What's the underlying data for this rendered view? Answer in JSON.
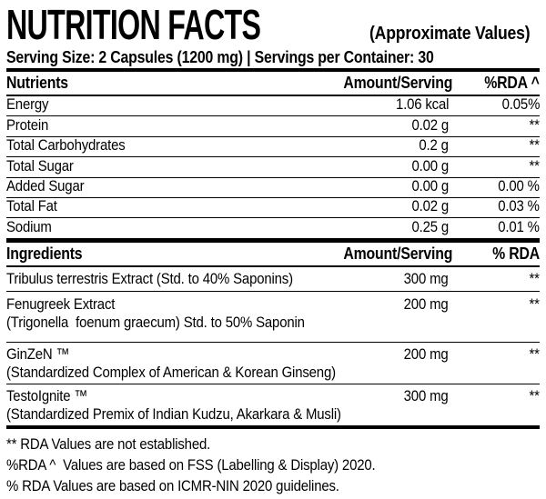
{
  "colors": {
    "text": "#000000",
    "background": "#ffffff"
  },
  "header": {
    "title": "NUTRITION FACTS",
    "title_note": "(Approximate Values)",
    "serving_line": "Serving Size: 2 Capsules (1200 mg) | Servings per Container: 30"
  },
  "nutrients_table": {
    "col_nutrients": "Nutrients",
    "col_amount": "Amount/Serving",
    "col_rda": "%RDA ^",
    "rows": [
      {
        "label": "Energy",
        "amount": "1.06 kcal",
        "rda": "0.05%"
      },
      {
        "label": "Protein",
        "amount": "0.02 g",
        "rda": "**"
      },
      {
        "label": "Total Carbohydrates",
        "amount": "0.2 g",
        "rda": "**"
      },
      {
        "label": "Total Sugar",
        "amount": "0.00 g",
        "rda": "**"
      },
      {
        "label": "Added Sugar",
        "amount": "0.00 g",
        "rda": "0.00 %"
      },
      {
        "label": "Total Fat",
        "amount": "0.02 g",
        "rda": "0.03 %"
      },
      {
        "label": "Sodium",
        "amount": "0.25 g",
        "rda": "0.01 %"
      }
    ]
  },
  "ingredients_table": {
    "col_ingredients": "Ingredients",
    "col_amount": "Amount/Serving",
    "col_rda": "% RDA",
    "rows": [
      {
        "label": "Tribulus terrestris Extract (Std. to 40% Saponins)",
        "amount": "300 mg",
        "rda": "**"
      },
      {
        "label": "Fenugreek Extract",
        "sub": "(Trigonella  foenum graecum) Std. to 50% Saponin",
        "amount": "200 mg",
        "rda": "**"
      },
      {
        "label": "GinZeN ™",
        "sub": "(Standardized Complex of American & Korean Ginseng)",
        "amount": "200 mg",
        "rda": "**"
      },
      {
        "label": "TestoIgnite ™",
        "sub": "(Standardized Premix of Indian Kudzu, Akarkara & Musli)",
        "amount": "300 mg",
        "rda": "**"
      }
    ]
  },
  "footnotes": [
    "** RDA Values are not established.",
    "%RDA ^  Values are based on FSS (Labelling & Display) 2020.",
    "% RDA Values are based on ICMR-NIN 2020 guidelines."
  ]
}
